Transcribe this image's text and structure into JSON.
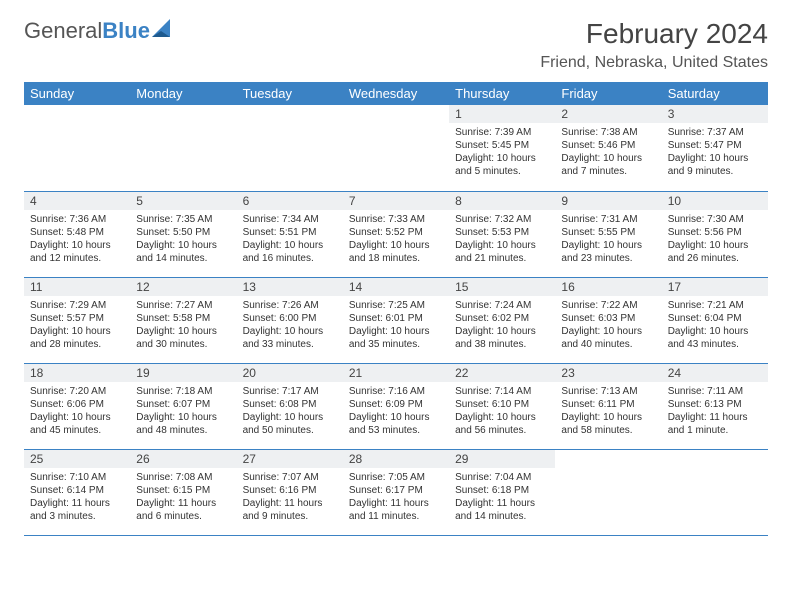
{
  "logo": {
    "text1": "General",
    "text2": "Blue"
  },
  "title": "February 2024",
  "location": "Friend, Nebraska, United States",
  "colors": {
    "accent": "#3b82c4",
    "daynum_bg": "#eef0f2",
    "text": "#333333"
  },
  "headers": [
    "Sunday",
    "Monday",
    "Tuesday",
    "Wednesday",
    "Thursday",
    "Friday",
    "Saturday"
  ],
  "weeks": [
    [
      null,
      null,
      null,
      null,
      {
        "n": "1",
        "sr": "7:39 AM",
        "ss": "5:45 PM",
        "dl": "10 hours and 5 minutes."
      },
      {
        "n": "2",
        "sr": "7:38 AM",
        "ss": "5:46 PM",
        "dl": "10 hours and 7 minutes."
      },
      {
        "n": "3",
        "sr": "7:37 AM",
        "ss": "5:47 PM",
        "dl": "10 hours and 9 minutes."
      }
    ],
    [
      {
        "n": "4",
        "sr": "7:36 AM",
        "ss": "5:48 PM",
        "dl": "10 hours and 12 minutes."
      },
      {
        "n": "5",
        "sr": "7:35 AM",
        "ss": "5:50 PM",
        "dl": "10 hours and 14 minutes."
      },
      {
        "n": "6",
        "sr": "7:34 AM",
        "ss": "5:51 PM",
        "dl": "10 hours and 16 minutes."
      },
      {
        "n": "7",
        "sr": "7:33 AM",
        "ss": "5:52 PM",
        "dl": "10 hours and 18 minutes."
      },
      {
        "n": "8",
        "sr": "7:32 AM",
        "ss": "5:53 PM",
        "dl": "10 hours and 21 minutes."
      },
      {
        "n": "9",
        "sr": "7:31 AM",
        "ss": "5:55 PM",
        "dl": "10 hours and 23 minutes."
      },
      {
        "n": "10",
        "sr": "7:30 AM",
        "ss": "5:56 PM",
        "dl": "10 hours and 26 minutes."
      }
    ],
    [
      {
        "n": "11",
        "sr": "7:29 AM",
        "ss": "5:57 PM",
        "dl": "10 hours and 28 minutes."
      },
      {
        "n": "12",
        "sr": "7:27 AM",
        "ss": "5:58 PM",
        "dl": "10 hours and 30 minutes."
      },
      {
        "n": "13",
        "sr": "7:26 AM",
        "ss": "6:00 PM",
        "dl": "10 hours and 33 minutes."
      },
      {
        "n": "14",
        "sr": "7:25 AM",
        "ss": "6:01 PM",
        "dl": "10 hours and 35 minutes."
      },
      {
        "n": "15",
        "sr": "7:24 AM",
        "ss": "6:02 PM",
        "dl": "10 hours and 38 minutes."
      },
      {
        "n": "16",
        "sr": "7:22 AM",
        "ss": "6:03 PM",
        "dl": "10 hours and 40 minutes."
      },
      {
        "n": "17",
        "sr": "7:21 AM",
        "ss": "6:04 PM",
        "dl": "10 hours and 43 minutes."
      }
    ],
    [
      {
        "n": "18",
        "sr": "7:20 AM",
        "ss": "6:06 PM",
        "dl": "10 hours and 45 minutes."
      },
      {
        "n": "19",
        "sr": "7:18 AM",
        "ss": "6:07 PM",
        "dl": "10 hours and 48 minutes."
      },
      {
        "n": "20",
        "sr": "7:17 AM",
        "ss": "6:08 PM",
        "dl": "10 hours and 50 minutes."
      },
      {
        "n": "21",
        "sr": "7:16 AM",
        "ss": "6:09 PM",
        "dl": "10 hours and 53 minutes."
      },
      {
        "n": "22",
        "sr": "7:14 AM",
        "ss": "6:10 PM",
        "dl": "10 hours and 56 minutes."
      },
      {
        "n": "23",
        "sr": "7:13 AM",
        "ss": "6:11 PM",
        "dl": "10 hours and 58 minutes."
      },
      {
        "n": "24",
        "sr": "7:11 AM",
        "ss": "6:13 PM",
        "dl": "11 hours and 1 minute."
      }
    ],
    [
      {
        "n": "25",
        "sr": "7:10 AM",
        "ss": "6:14 PM",
        "dl": "11 hours and 3 minutes."
      },
      {
        "n": "26",
        "sr": "7:08 AM",
        "ss": "6:15 PM",
        "dl": "11 hours and 6 minutes."
      },
      {
        "n": "27",
        "sr": "7:07 AM",
        "ss": "6:16 PM",
        "dl": "11 hours and 9 minutes."
      },
      {
        "n": "28",
        "sr": "7:05 AM",
        "ss": "6:17 PM",
        "dl": "11 hours and 11 minutes."
      },
      {
        "n": "29",
        "sr": "7:04 AM",
        "ss": "6:18 PM",
        "dl": "11 hours and 14 minutes."
      },
      null,
      null
    ]
  ],
  "labels": {
    "sunrise": "Sunrise:",
    "sunset": "Sunset:",
    "daylight": "Daylight:"
  }
}
